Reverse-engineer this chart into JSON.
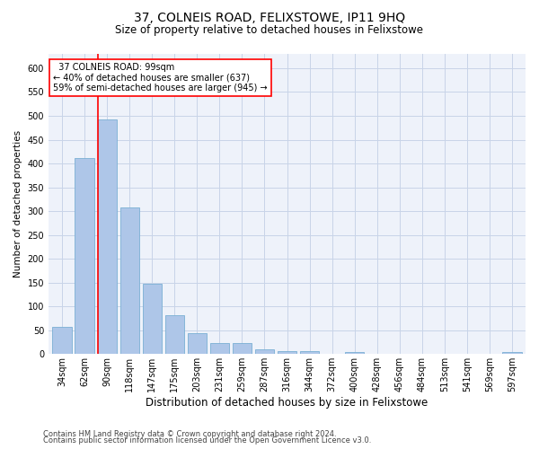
{
  "title": "37, COLNEIS ROAD, FELIXSTOWE, IP11 9HQ",
  "subtitle": "Size of property relative to detached houses in Felixstowe",
  "xlabel": "Distribution of detached houses by size in Felixstowe",
  "ylabel": "Number of detached properties",
  "bar_color": "#aec6e8",
  "bar_edge_color": "#7aafd4",
  "background_color": "#eef2fa",
  "categories": [
    "34sqm",
    "62sqm",
    "90sqm",
    "118sqm",
    "147sqm",
    "175sqm",
    "203sqm",
    "231sqm",
    "259sqm",
    "287sqm",
    "316sqm",
    "344sqm",
    "372sqm",
    "400sqm",
    "428sqm",
    "456sqm",
    "484sqm",
    "513sqm",
    "541sqm",
    "569sqm",
    "597sqm"
  ],
  "values": [
    57,
    412,
    493,
    307,
    148,
    82,
    44,
    24,
    24,
    10,
    6,
    6,
    0,
    5,
    0,
    0,
    0,
    0,
    0,
    0,
    5
  ],
  "ylim": [
    0,
    630
  ],
  "yticks": [
    0,
    50,
    100,
    150,
    200,
    250,
    300,
    350,
    400,
    450,
    500,
    550,
    600
  ],
  "red_line_x": 2,
  "annotation_title": "37 COLNEIS ROAD: 99sqm",
  "annotation_line1": "← 40% of detached houses are smaller (637)",
  "annotation_line2": "59% of semi-detached houses are larger (945) →",
  "footnote1": "Contains HM Land Registry data © Crown copyright and database right 2024.",
  "footnote2": "Contains public sector information licensed under the Open Government Licence v3.0.",
  "grid_color": "#c8d4e8",
  "title_fontsize": 10,
  "subtitle_fontsize": 8.5,
  "ylabel_fontsize": 7.5,
  "xlabel_fontsize": 8.5,
  "tick_fontsize": 7,
  "annot_fontsize": 7,
  "footnote_fontsize": 6
}
